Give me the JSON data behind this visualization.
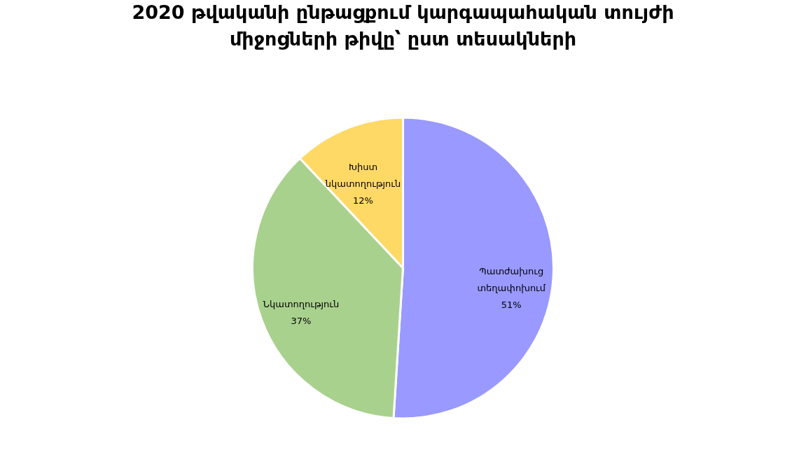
{
  "chart_data": {
    "type": "pie",
    "title": "2020 թվականի ընթացքում կարգապահական տույժի միջոցների թիվը՝ ըստ տեսակների",
    "categories": [
      "Պատժախուց տեղափոխում",
      "Նկատողություն",
      "Խիստ նկատողություն"
    ],
    "values": [
      51,
      37,
      12
    ],
    "colors": [
      "#9999ff",
      "#a9d18e",
      "#ffd966"
    ],
    "value_labels": [
      "51%",
      "37%",
      "12%"
    ],
    "legend": false
  }
}
